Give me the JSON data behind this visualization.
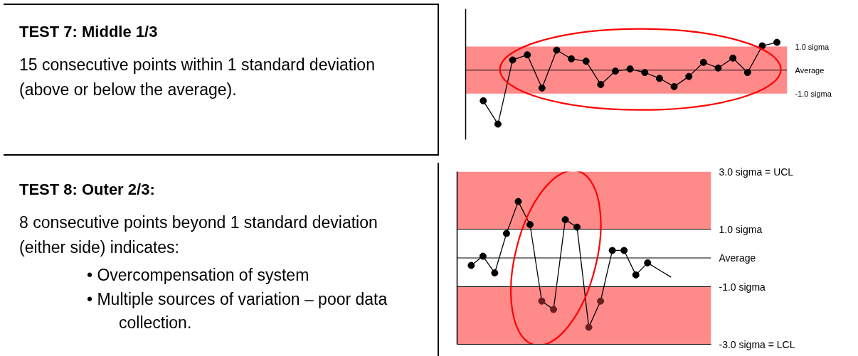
{
  "chart_data": [
    {
      "type": "other",
      "title": "TEST 7: Middle 1/3",
      "annotations": [
        "15 consecutive points within 1 standard deviation (above or below the average)."
      ]
    },
    {
      "type": "line",
      "categories": [
        null,
        null,
        null,
        null,
        null,
        null,
        null,
        null,
        null,
        null,
        null,
        null,
        null,
        null,
        null,
        null,
        null,
        null,
        null,
        null,
        null
      ],
      "values": [
        -1.3,
        -2.29,
        0.43,
        0.65,
        -0.76,
        0.85,
        0.48,
        0.38,
        -0.61,
        -0.04,
        0.05,
        -0.1,
        -0.35,
        -0.7,
        -0.27,
        0.33,
        0.09,
        0.51,
        -0.1,
        1.03,
        1.18
      ],
      "color": "#000000",
      "marker": "circle",
      "ylim": [
        -2.95,
        2.6
      ],
      "yticks": [
        {
          "value": 1,
          "label": "1.0 sigma"
        },
        {
          "value": 0,
          "label": "Average"
        },
        {
          "value": -1,
          "label": "-1.0 sigma"
        }
      ],
      "tick_labels": "y",
      "bands": [
        {
          "axis": "y",
          "from": -1,
          "to": 1,
          "color": "#ff8a8a"
        }
      ],
      "ref_lines": [
        {
          "axis": "y",
          "value": 0,
          "color": "#000000"
        }
      ]
    },
    {
      "type": "other",
      "title": "TEST 8: Outer 2/3:",
      "annotations": [
        "8 consecutive points beyond 1 standard deviation (either side) indicates:",
        "• Overcompensation of system",
        "• Multiple sources of variation – poor data collection."
      ]
    },
    {
      "type": "line",
      "marker": "circle",
      "categories": [
        null,
        null,
        null,
        null,
        null,
        null,
        null,
        null,
        null,
        null,
        null,
        null,
        null,
        null,
        null,
        null,
        null,
        null
      ],
      "ylim": [
        -3,
        3
      ],
      "yticks": [
        {
          "value": 3,
          "label": "3.0  sigma = UCL"
        },
        {
          "value": 1,
          "label": "1.0 sigma"
        },
        {
          "value": 0,
          "label": "Average"
        },
        {
          "value": -1,
          "label": "-1.0 sigma"
        },
        {
          "value": -3,
          "label": "-3.0  sigma = LCL"
        }
      ],
      "tick_labels": "y",
      "series": [
        {
          "color": "#000000",
          "values": [
            -0.26,
            0.06,
            -0.52,
            0.85,
            1.96,
            1.16,
            -1.5,
            -1.79,
            1.33,
            1.07,
            -2.41,
            -1.5,
            0.26,
            0.26,
            -0.59,
            -0.17,
            -0.42,
            -0.67
          ],
          "colors": [
            "#000000",
            "#000000",
            "#000000",
            "#000000",
            "#000000",
            "#000000",
            "#6b1f1f",
            "#6b1f1f",
            "#000000",
            "#000000",
            "#6b1f1f",
            "#6b1f1f",
            "#000000",
            "#000000",
            "#000000",
            "#000000",
            null,
            null
          ]
        }
      ],
      "bands": [
        {
          "axis": "y",
          "from": 1,
          "to": 3,
          "color": "#ff8a8a"
        },
        {
          "axis": "y",
          "from": -3,
          "to": -1,
          "color": "#ff8a8a"
        }
      ],
      "ref_lines": [
        {
          "axis": "y",
          "value": 1,
          "color": "#000000"
        },
        {
          "axis": "y",
          "value": 0,
          "color": "#000000"
        },
        {
          "axis": "y",
          "value": -1,
          "color": "#000000"
        }
      ]
    }
  ]
}
